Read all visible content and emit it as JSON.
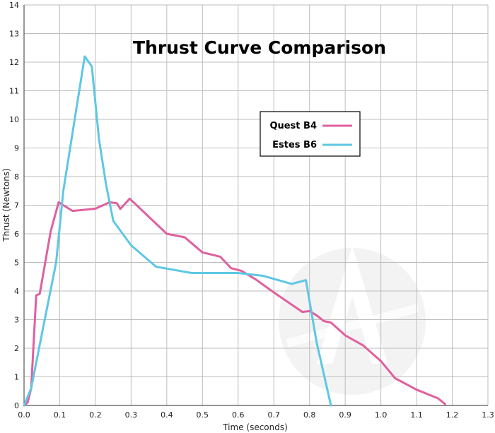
{
  "chart_data": {
    "type": "line",
    "title": "Thrust Curve Comparison",
    "xlabel": "Time (seconds)",
    "ylabel": "Thrust (Newtons)",
    "xlim": [
      0,
      1.3
    ],
    "ylim": [
      0,
      14
    ],
    "x_ticks": [
      "0.0",
      "0.1",
      "0.2",
      "0.3",
      "0.4",
      "0.5",
      "0.6",
      "0.7",
      "0.8",
      "0.9",
      "1.0",
      "1.1",
      "1.2",
      "1.3"
    ],
    "y_ticks": [
      "0",
      "1",
      "2",
      "3",
      "4",
      "5",
      "6",
      "7",
      "8",
      "9",
      "10",
      "11",
      "12",
      "13",
      "14"
    ],
    "grid": true,
    "legend_position": "upper-right of center",
    "series": [
      {
        "name": "Quest B4",
        "color": "#e0609e",
        "points": [
          [
            0.0,
            0.0
          ],
          [
            0.01,
            0.1
          ],
          [
            0.02,
            0.6
          ],
          [
            0.034,
            3.85
          ],
          [
            0.044,
            3.9
          ],
          [
            0.065,
            5.4
          ],
          [
            0.075,
            6.1
          ],
          [
            0.097,
            7.1
          ],
          [
            0.136,
            6.8
          ],
          [
            0.2,
            6.88
          ],
          [
            0.24,
            7.1
          ],
          [
            0.26,
            7.07
          ],
          [
            0.27,
            6.87
          ],
          [
            0.296,
            7.23
          ],
          [
            0.4,
            6.0
          ],
          [
            0.45,
            5.88
          ],
          [
            0.5,
            5.35
          ],
          [
            0.55,
            5.2
          ],
          [
            0.58,
            4.8
          ],
          [
            0.61,
            4.7
          ],
          [
            0.65,
            4.4
          ],
          [
            0.7,
            3.95
          ],
          [
            0.78,
            3.27
          ],
          [
            0.8,
            3.3
          ],
          [
            0.82,
            3.15
          ],
          [
            0.84,
            2.95
          ],
          [
            0.86,
            2.9
          ],
          [
            0.9,
            2.45
          ],
          [
            0.95,
            2.1
          ],
          [
            1.0,
            1.55
          ],
          [
            1.04,
            0.95
          ],
          [
            1.1,
            0.55
          ],
          [
            1.16,
            0.25
          ],
          [
            1.18,
            0.05
          ]
        ]
      },
      {
        "name": "Estes B6",
        "color": "#5ec7e4",
        "points": [
          [
            0.0,
            0.0
          ],
          [
            0.02,
            0.6
          ],
          [
            0.05,
            2.5
          ],
          [
            0.09,
            5.0
          ],
          [
            0.11,
            7.5
          ],
          [
            0.17,
            12.2
          ],
          [
            0.19,
            11.85
          ],
          [
            0.21,
            9.3
          ],
          [
            0.23,
            7.7
          ],
          [
            0.25,
            6.45
          ],
          [
            0.3,
            5.6
          ],
          [
            0.37,
            4.85
          ],
          [
            0.47,
            4.63
          ],
          [
            0.6,
            4.63
          ],
          [
            0.67,
            4.53
          ],
          [
            0.75,
            4.25
          ],
          [
            0.79,
            4.38
          ],
          [
            0.82,
            2.2
          ],
          [
            0.86,
            0.0
          ]
        ]
      }
    ]
  }
}
